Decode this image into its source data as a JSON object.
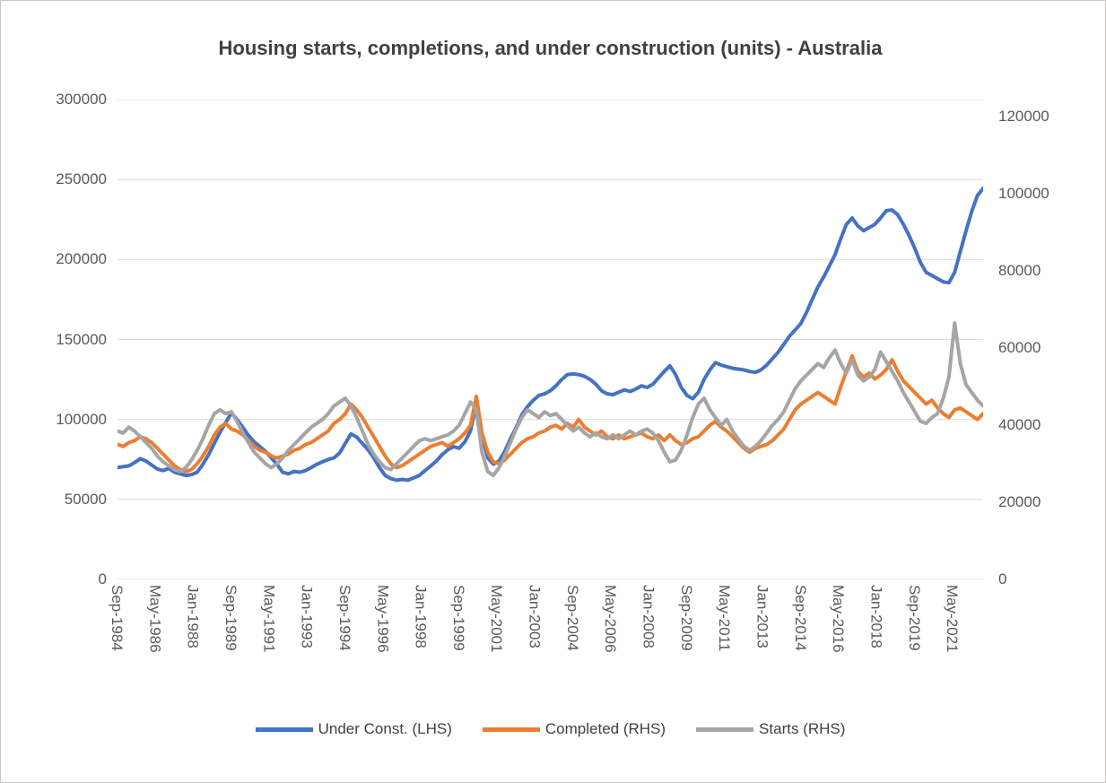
{
  "page": {
    "background": "#ffffff",
    "border_color": "#c9c7c5"
  },
  "chart_data": {
    "type": "line",
    "title": "Housing starts, completions, and under construction (units) - Australia",
    "title_color": "#404040",
    "grid": true,
    "gridline_color": "#d9d9d9",
    "axis_label_color": "#595959",
    "legend_position": "bottom",
    "frequency": "quarterly",
    "x_start": "Sep-1984",
    "x_end": "Sep-2022",
    "left_axis": {
      "min": 0,
      "max": 300000,
      "ticks": [
        300000,
        250000,
        200000,
        150000,
        100000,
        50000,
        0
      ]
    },
    "right_axis": {
      "min": 0,
      "max": 120000,
      "plot_max_hint": 124500,
      "ticks": [
        120000,
        100000,
        80000,
        60000,
        40000,
        20000,
        0
      ]
    },
    "x_tick_labels": [
      "Sep-1984",
      "May-1986",
      "Jan-1988",
      "Sep-1989",
      "May-1991",
      "Jan-1993",
      "Sep-1994",
      "May-1996",
      "Jan-1998",
      "Sep-1999",
      "May-2001",
      "Jan-2003",
      "Sep-2004",
      "May-2006",
      "Jan-2008",
      "Sep-2009",
      "May-2011",
      "Jan-2013",
      "Sep-2014",
      "May-2016",
      "Jan-2018",
      "Sep-2019",
      "May-2021"
    ],
    "x_tick_step_months": 20,
    "x_total_months": 456,
    "series": [
      {
        "name": "Under Const. (LHS)",
        "axis": "left",
        "color": "#4472c4",
        "values": [
          70000,
          70500,
          71000,
          73000,
          75500,
          74000,
          71500,
          69000,
          68000,
          69500,
          67000,
          66000,
          65000,
          65500,
          67000,
          72000,
          78000,
          85000,
          92000,
          98000,
          104000,
          100000,
          95000,
          90000,
          86000,
          83000,
          80000,
          76000,
          72000,
          67000,
          66000,
          67500,
          67000,
          68000,
          70000,
          72000,
          73500,
          75000,
          76000,
          79000,
          85000,
          91000,
          89000,
          85000,
          81000,
          76000,
          70000,
          65000,
          63000,
          62000,
          62500,
          62000,
          63500,
          65000,
          68000,
          71000,
          74000,
          78000,
          81000,
          83000,
          82000,
          86000,
          93000,
          110000,
          90000,
          76000,
          72000,
          74000,
          80000,
          88000,
          95000,
          103000,
          108000,
          112000,
          115000,
          116000,
          118000,
          121000,
          125000,
          128000,
          128500,
          128000,
          127000,
          125000,
          122000,
          118000,
          116000,
          115500,
          117000,
          118500,
          117500,
          119000,
          121000,
          120000,
          122000,
          126000,
          130000,
          133500,
          128000,
          120000,
          115000,
          113000,
          117000,
          125000,
          131000,
          135500,
          134000,
          133000,
          132000,
          131500,
          131000,
          130000,
          129500,
          131000,
          134000,
          138000,
          142000,
          147000,
          152000,
          156000,
          160000,
          167000,
          175000,
          183000,
          189000,
          196000,
          203000,
          213000,
          222000,
          226000,
          221000,
          218000,
          220000,
          222000,
          226000,
          230500,
          231000,
          228000,
          222000,
          215000,
          207000,
          198000,
          192000,
          190000,
          188000,
          186000,
          185500,
          192000,
          205000,
          218000,
          230000,
          240000,
          244500
        ]
      },
      {
        "name": "Completed (RHS)",
        "axis": "right",
        "color": "#ed7d31",
        "values": [
          35000,
          34500,
          35500,
          36000,
          37000,
          36500,
          35500,
          34000,
          32500,
          31000,
          29500,
          28500,
          28000,
          28500,
          30000,
          32000,
          34500,
          37500,
          39500,
          40500,
          39000,
          38500,
          37500,
          36000,
          34500,
          33500,
          33000,
          32000,
          31500,
          32000,
          32500,
          33500,
          34000,
          35000,
          35500,
          36500,
          37500,
          38500,
          40500,
          41500,
          43000,
          45500,
          44000,
          42000,
          39500,
          37000,
          34500,
          32000,
          30000,
          29000,
          29500,
          30500,
          31500,
          32500,
          33500,
          34500,
          35000,
          35500,
          34500,
          35500,
          36500,
          38000,
          40000,
          47500,
          38000,
          33000,
          30500,
          30000,
          31000,
          32500,
          34000,
          35500,
          36500,
          37000,
          38000,
          38500,
          39500,
          40000,
          39000,
          40500,
          39500,
          41500,
          39500,
          38500,
          37500,
          38500,
          37000,
          36500,
          37500,
          36500,
          37000,
          37500,
          38000,
          37000,
          36500,
          37500,
          36000,
          37500,
          36000,
          35000,
          35500,
          36500,
          37000,
          38500,
          40000,
          41000,
          39500,
          38500,
          37000,
          35500,
          34000,
          33000,
          34000,
          34500,
          35000,
          36000,
          37500,
          39000,
          41500,
          44000,
          45500,
          46500,
          47500,
          48500,
          47500,
          46500,
          45500,
          50000,
          54000,
          58000,
          54000,
          52500,
          53500,
          52000,
          53000,
          54500,
          57000,
          54000,
          51500,
          50000,
          48500,
          47000,
          45500,
          46500,
          44500,
          43000,
          42000,
          44000,
          44500,
          43500,
          42500,
          41500,
          43000
        ]
      },
      {
        "name": "Starts (RHS)",
        "axis": "right",
        "color": "#a5a5a5",
        "values": [
          38500,
          38000,
          39500,
          38500,
          37000,
          35500,
          34000,
          32000,
          30500,
          29500,
          28500,
          28000,
          29000,
          31000,
          33500,
          36500,
          40000,
          43000,
          44000,
          43000,
          43500,
          41000,
          38000,
          35500,
          33000,
          31500,
          30000,
          29000,
          30000,
          31500,
          33500,
          35000,
          36500,
          38000,
          39500,
          40500,
          41500,
          43000,
          45000,
          46000,
          47000,
          45000,
          42000,
          38500,
          35000,
          32500,
          30500,
          29000,
          28500,
          30000,
          31500,
          33000,
          34500,
          36000,
          36500,
          36000,
          36500,
          37000,
          37500,
          38500,
          40000,
          43000,
          46000,
          44000,
          33000,
          28000,
          27000,
          29000,
          32000,
          35500,
          39000,
          42000,
          44000,
          43000,
          42000,
          43500,
          42500,
          43000,
          41500,
          40000,
          38500,
          39500,
          38000,
          37000,
          38000,
          37000,
          36500,
          37500,
          36500,
          37500,
          38500,
          37500,
          38500,
          39000,
          38000,
          36000,
          33000,
          30500,
          31000,
          33500,
          37500,
          42000,
          45500,
          47000,
          44000,
          42000,
          40000,
          41500,
          38500,
          36500,
          34500,
          33500,
          34500,
          36000,
          38000,
          40000,
          41500,
          43500,
          46500,
          49500,
          51500,
          53000,
          54500,
          56000,
          55000,
          57500,
          59500,
          56000,
          53500,
          57000,
          53000,
          51500,
          52500,
          54500,
          59000,
          56500,
          54000,
          51500,
          48500,
          46000,
          43500,
          41000,
          40500,
          42000,
          43000,
          47000,
          52500,
          66500,
          56000,
          50500,
          48500,
          46500,
          45000
        ]
      }
    ]
  }
}
